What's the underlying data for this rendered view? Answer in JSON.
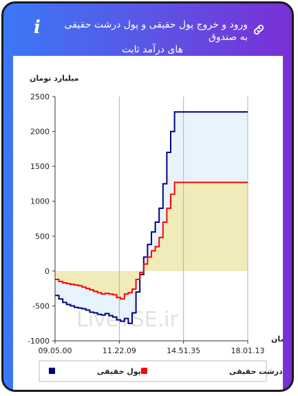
{
  "header": {
    "title_line1": "ورود و خروج پول حقیقی و پول درشت حقیقی به صندوق",
    "title_line2": "های درآمد ثابت",
    "info_icon": "i",
    "link_icon": "link-icon"
  },
  "chart_data": {
    "type": "area",
    "ylabel": "میلیارد تومان",
    "xlabel": "زمان",
    "ylim": [
      -1000,
      2500
    ],
    "yticks": [
      2500,
      2000,
      1500,
      1000,
      500,
      0,
      -500,
      -1000
    ],
    "xtick_labels": [
      "09.05.00",
      "11.22.09",
      "14.51.35",
      "18.01.13"
    ],
    "watermark": "LiveTSE.ir",
    "grid": "vertical",
    "legend_position": "bottom",
    "series": [
      {
        "name": "پول حقیقی",
        "color": "#00007f",
        "fill": "#e8f4fc",
        "x": [
          0,
          2,
          4,
          6,
          8,
          10,
          12,
          14,
          16,
          18,
          20,
          22,
          24,
          26,
          28,
          30,
          32,
          34,
          36,
          38,
          40,
          42,
          44,
          46,
          48,
          50,
          52,
          54,
          56,
          58,
          60,
          62,
          64,
          66,
          68,
          70,
          72,
          74,
          76,
          78,
          80,
          82,
          84,
          86,
          88,
          90,
          92,
          94,
          96,
          98,
          100
        ],
        "values": [
          -350,
          -400,
          -450,
          -480,
          -500,
          -520,
          -530,
          -540,
          -560,
          -590,
          -600,
          -620,
          -630,
          -610,
          -640,
          -660,
          -700,
          -720,
          -680,
          -750,
          -600,
          -300,
          -50,
          200,
          380,
          560,
          700,
          900,
          1250,
          1700,
          2000,
          2280,
          2280,
          2280,
          2280,
          2280,
          2280,
          2280,
          2280,
          2280,
          2280,
          2280,
          2280,
          2280,
          2280,
          2280,
          2280,
          2280,
          2280,
          2280,
          2280
        ]
      },
      {
        "name": "پول درشت حقیقی",
        "color": "#ff0000",
        "fill": "#f0ebb9",
        "x": [
          0,
          2,
          4,
          6,
          8,
          10,
          12,
          14,
          16,
          18,
          20,
          22,
          24,
          26,
          28,
          30,
          32,
          34,
          36,
          38,
          40,
          42,
          44,
          46,
          48,
          50,
          52,
          54,
          56,
          58,
          60,
          62,
          64,
          66,
          68,
          70,
          72,
          74,
          76,
          78,
          80,
          82,
          84,
          86,
          88,
          90,
          92,
          94,
          96,
          98,
          100
        ],
        "values": [
          -120,
          -150,
          -170,
          -180,
          -190,
          -200,
          -210,
          -230,
          -250,
          -270,
          -290,
          -310,
          -330,
          -320,
          -330,
          -340,
          -380,
          -400,
          -330,
          -310,
          -260,
          -120,
          -20,
          100,
          200,
          290,
          350,
          480,
          700,
          900,
          1100,
          1270,
          1270,
          1270,
          1270,
          1270,
          1270,
          1270,
          1270,
          1270,
          1270,
          1270,
          1270,
          1270,
          1270,
          1270,
          1270,
          1270,
          1270,
          1270,
          1270
        ]
      }
    ]
  }
}
